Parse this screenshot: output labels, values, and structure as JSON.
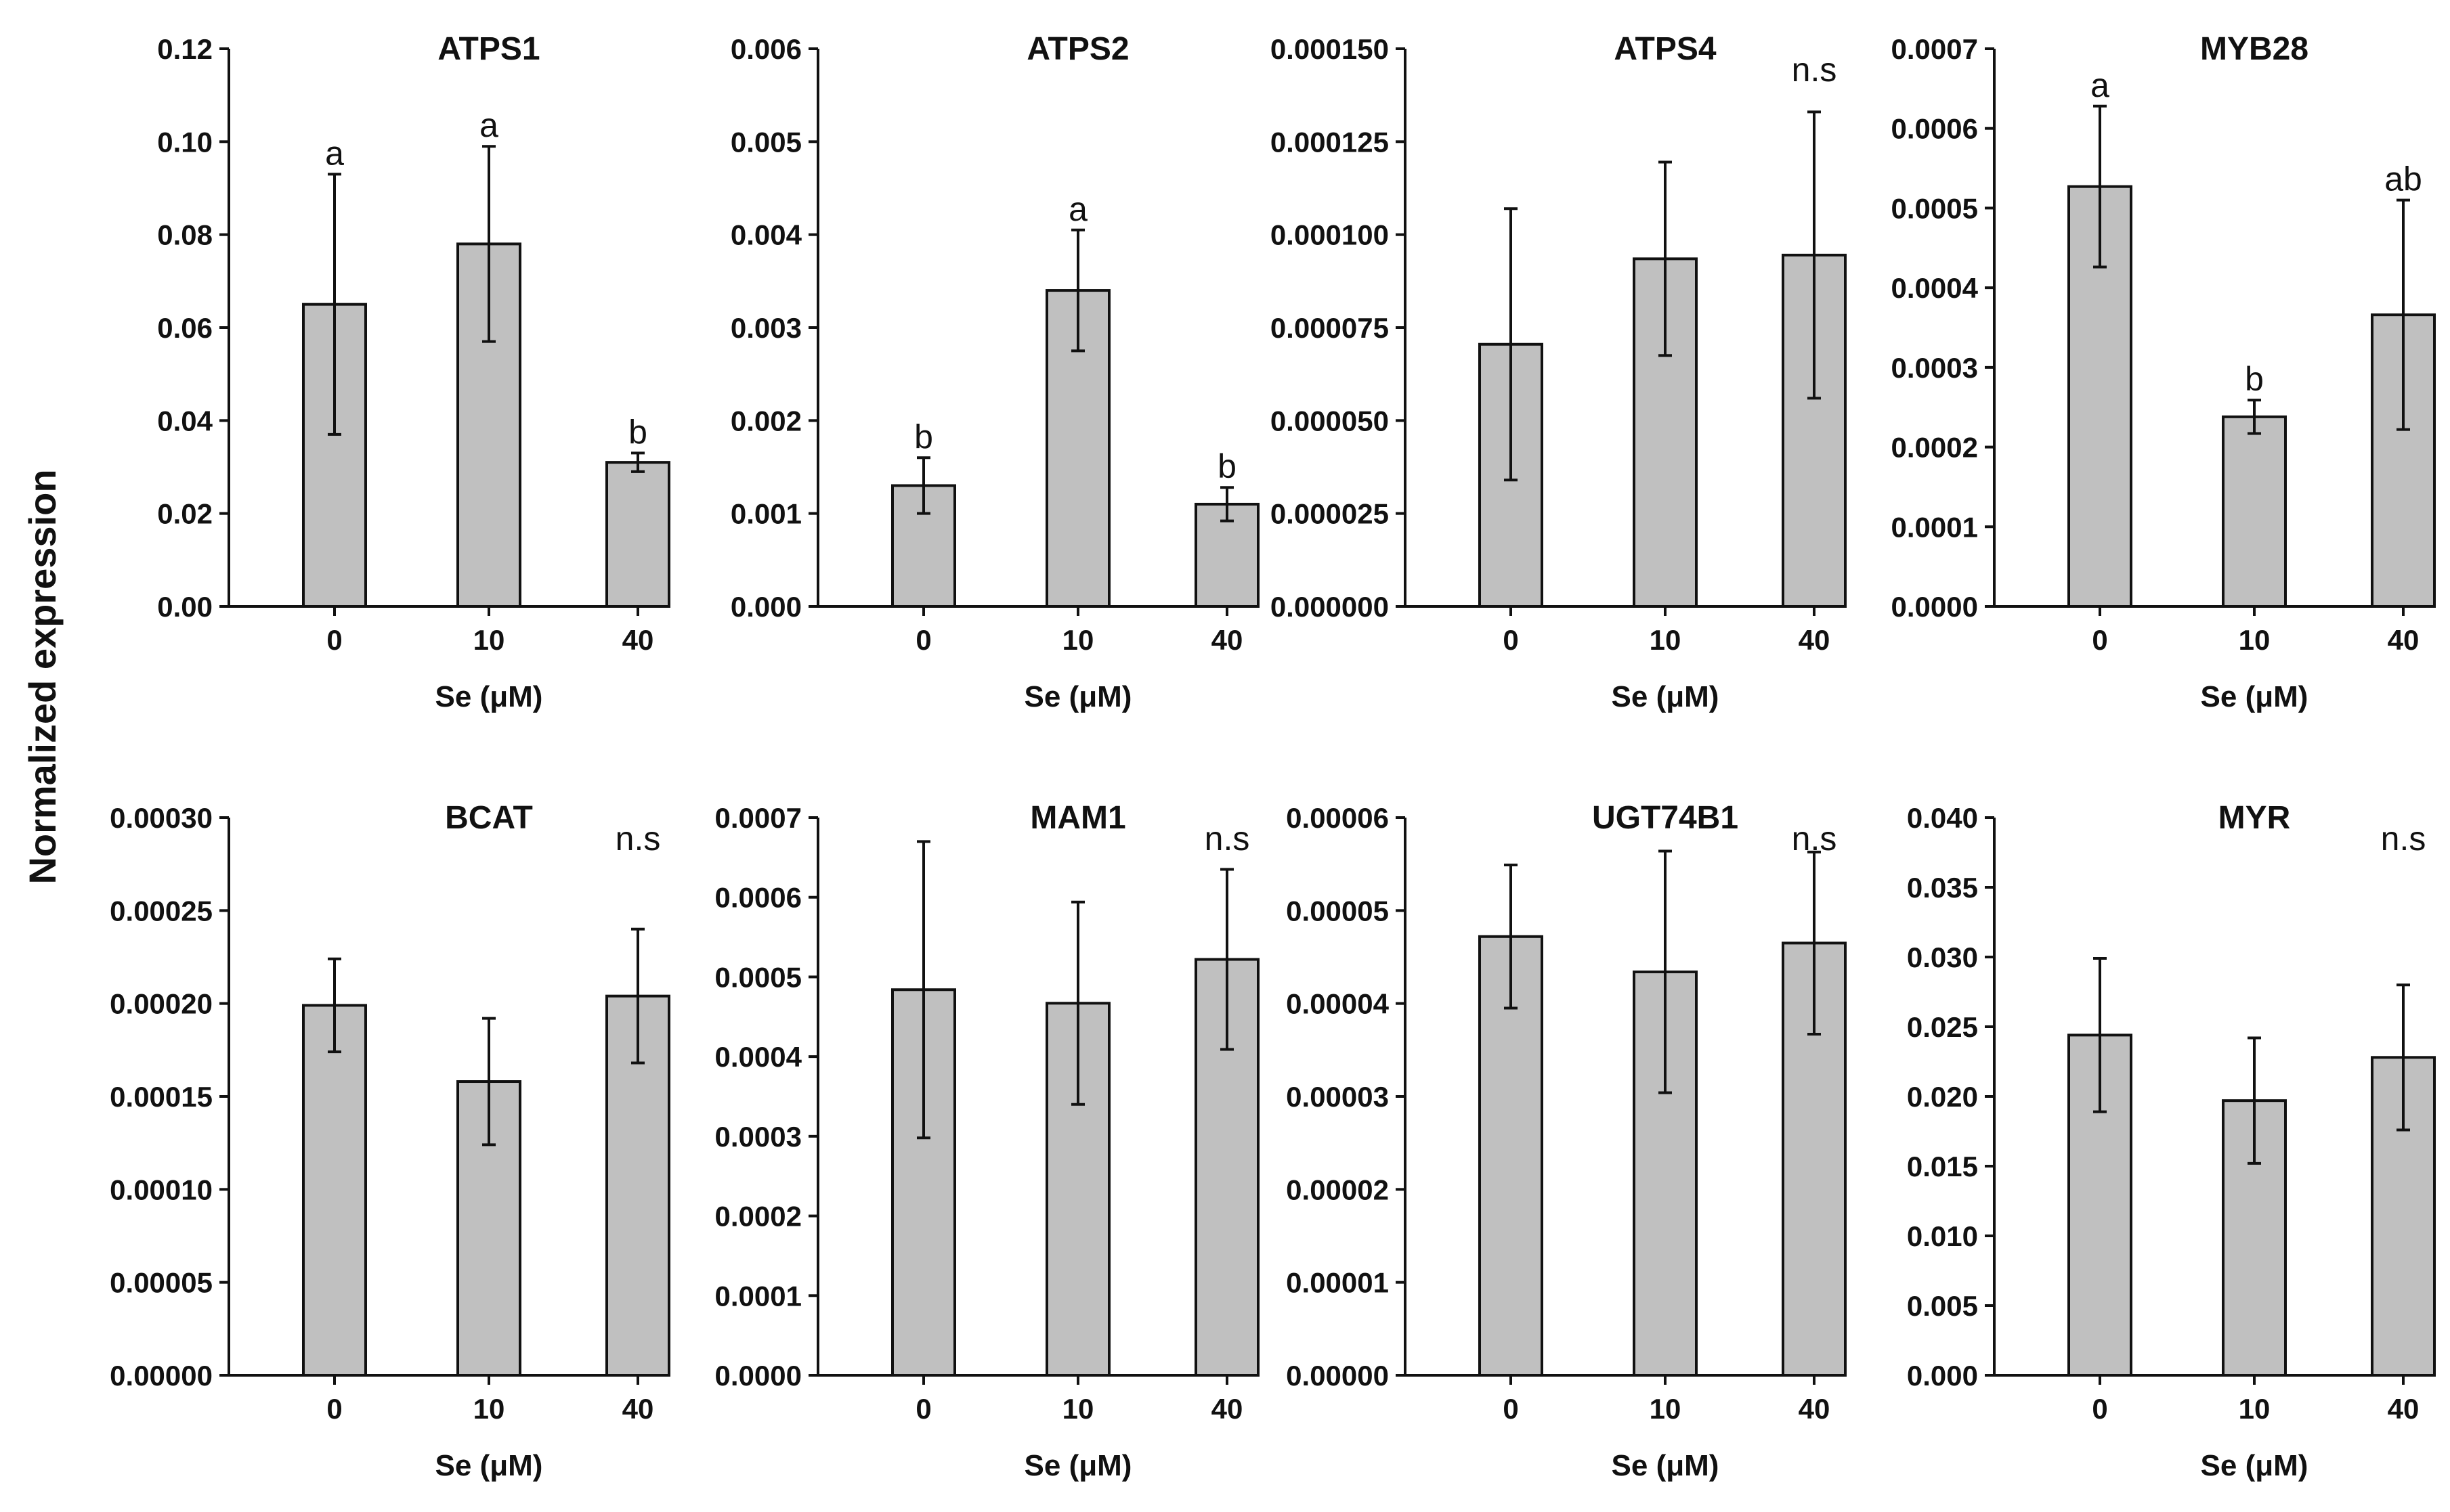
{
  "figure": {
    "ylabel": "Normalized expression",
    "bar_color": "#c0c0c0"
  },
  "chart_data": [
    {
      "type": "bar",
      "title": "ATPS1",
      "xlabel": "Se (μM)",
      "categories": [
        "0",
        "10",
        "40"
      ],
      "values": [
        0.065,
        0.078,
        0.031
      ],
      "errors": [
        0.028,
        0.021,
        0.002
      ],
      "labels": [
        "a",
        "a",
        "b"
      ],
      "ylim": [
        0,
        0.12
      ],
      "yticks": [
        "0.00",
        "0.02",
        "0.04",
        "0.06",
        "0.08",
        "0.10",
        "0.12"
      ],
      "note": ""
    },
    {
      "type": "bar",
      "title": "ATPS2",
      "xlabel": "Se (μM)",
      "categories": [
        "0",
        "10",
        "40"
      ],
      "values": [
        0.0013,
        0.0034,
        0.0011
      ],
      "errors": [
        0.0003,
        0.00065,
        0.00018
      ],
      "labels": [
        "b",
        "a",
        "b"
      ],
      "ylim": [
        0,
        0.006
      ],
      "yticks": [
        "0.000",
        "0.001",
        "0.002",
        "0.003",
        "0.004",
        "0.005",
        "0.006"
      ],
      "note": ""
    },
    {
      "type": "bar",
      "title": "ATPS4",
      "xlabel": "Se (μM)",
      "categories": [
        "0",
        "10",
        "40"
      ],
      "values": [
        7.05e-05,
        9.35e-05,
        9.45e-05
      ],
      "errors": [
        3.65e-05,
        2.6e-05,
        3.85e-05
      ],
      "labels": [
        "",
        "",
        ""
      ],
      "ylim": [
        0,
        0.00015
      ],
      "yticks": [
        "0.000000",
        "0.000025",
        "0.000050",
        "0.000075",
        "0.000100",
        "0.000125",
        "0.000150"
      ],
      "note": "n.s"
    },
    {
      "type": "bar",
      "title": "MYB28",
      "xlabel": "Se (μM)",
      "categories": [
        "0",
        "10",
        "40"
      ],
      "values": [
        0.000527,
        0.000238,
        0.000366
      ],
      "errors": [
        0.000101,
        2.1e-05,
        0.000144
      ],
      "labels": [
        "a",
        "b",
        "ab"
      ],
      "ylim": [
        0,
        0.0007
      ],
      "yticks": [
        "0.0000",
        "0.0001",
        "0.0002",
        "0.0003",
        "0.0004",
        "0.0005",
        "0.0006",
        "0.0007"
      ],
      "note": ""
    },
    {
      "type": "bar",
      "title": "BCAT",
      "xlabel": "Se (μM)",
      "categories": [
        "0",
        "10",
        "40"
      ],
      "values": [
        0.000199,
        0.000158,
        0.000204
      ],
      "errors": [
        2.5e-05,
        3.4e-05,
        3.6e-05
      ],
      "labels": [
        "",
        "",
        ""
      ],
      "ylim": [
        0,
        0.0003
      ],
      "yticks": [
        "0.00000",
        "0.00005",
        "0.00010",
        "0.00015",
        "0.00020",
        "0.00025",
        "0.00030"
      ],
      "note": "n.s"
    },
    {
      "type": "bar",
      "title": "MAM1",
      "xlabel": "Se (μM)",
      "categories": [
        "0",
        "10",
        "40"
      ],
      "values": [
        0.000484,
        0.000467,
        0.000522
      ],
      "errors": [
        0.000186,
        0.000127,
        0.000113
      ],
      "labels": [
        "",
        "",
        ""
      ],
      "ylim": [
        0,
        0.0007
      ],
      "yticks": [
        "0.0000",
        "0.0001",
        "0.0002",
        "0.0003",
        "0.0004",
        "0.0005",
        "0.0006",
        "0.0007"
      ],
      "note": "n.s"
    },
    {
      "type": "bar",
      "title": "UGT74B1",
      "xlabel": "Se (μM)",
      "categories": [
        "0",
        "10",
        "40"
      ],
      "values": [
        4.72e-05,
        4.34e-05,
        4.65e-05
      ],
      "errors": [
        7.7e-06,
        1.3e-05,
        9.8e-06
      ],
      "labels": [
        "",
        "",
        ""
      ],
      "ylim": [
        0,
        6e-05
      ],
      "yticks": [
        "0.00000",
        "0.00001",
        "0.00002",
        "0.00003",
        "0.00004",
        "0.00005",
        "0.00006"
      ],
      "note": "n.s"
    },
    {
      "type": "bar",
      "title": "MYR",
      "xlabel": "Se (μM)",
      "categories": [
        "0",
        "10",
        "40"
      ],
      "values": [
        0.0244,
        0.0197,
        0.0228
      ],
      "errors": [
        0.0055,
        0.0045,
        0.0052
      ],
      "labels": [
        "",
        "",
        ""
      ],
      "ylim": [
        0,
        0.04
      ],
      "yticks": [
        "0.000",
        "0.005",
        "0.010",
        "0.015",
        "0.020",
        "0.025",
        "0.030",
        "0.035",
        "0.040"
      ],
      "note": "n.s"
    }
  ]
}
